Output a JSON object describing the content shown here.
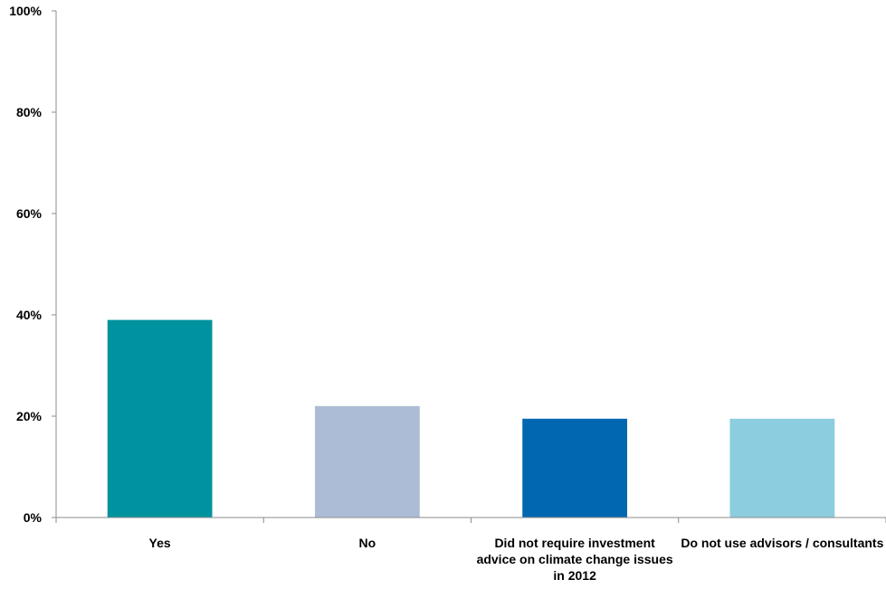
{
  "chart_data": {
    "type": "bar",
    "categories": [
      [
        "Yes"
      ],
      [
        "No"
      ],
      [
        "Did not require investment",
        "advice on climate change issues",
        "in 2012"
      ],
      [
        "Do not use advisors / consultants"
      ]
    ],
    "values": [
      39,
      22,
      19.5,
      19.5
    ],
    "colors": [
      "#00929f",
      "#adbcd6",
      "#0067b0",
      "#8ccddf"
    ],
    "y_ticks": [
      "0%",
      "20%",
      "40%",
      "60%",
      "80%",
      "100%"
    ],
    "ylim": [
      0,
      100
    ],
    "grid": false,
    "legend": "none"
  }
}
